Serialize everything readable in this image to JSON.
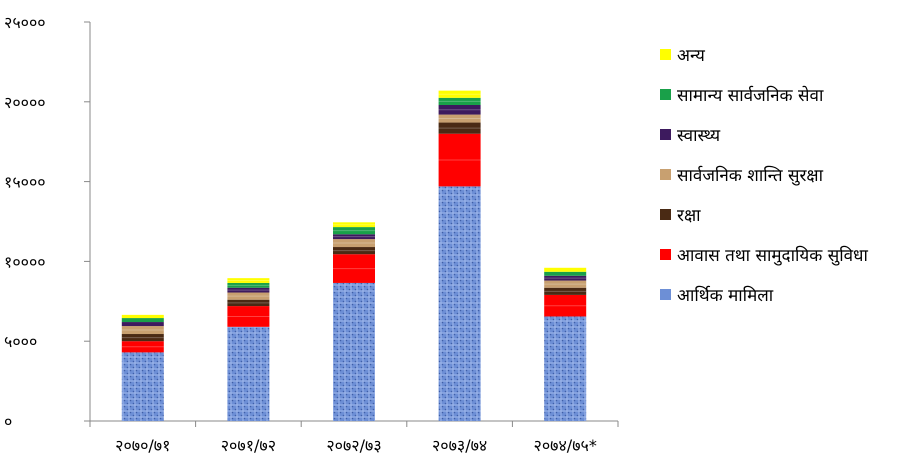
{
  "chart_data": {
    "type": "bar",
    "stacked": true,
    "categories": [
      "२०७०/७१",
      "२०७१/७२",
      "२०७२/७३",
      "२०७३/७४",
      "२०७४/७५*"
    ],
    "ylim": [
      0,
      25000
    ],
    "yticks": [
      {
        "value": 0,
        "label": "०"
      },
      {
        "value": 5000,
        "label": "५०००"
      },
      {
        "value": 10000,
        "label": "१००००"
      },
      {
        "value": 15000,
        "label": "१५०००"
      },
      {
        "value": 20000,
        "label": "२००००"
      },
      {
        "value": 25000,
        "label": "२५०००"
      }
    ],
    "grid": false,
    "legend_position": "right",
    "series": [
      {
        "name": "आर्थिक मामिला",
        "color": "#6d8fd6",
        "values": [
          4300,
          5900,
          8650,
          14700,
          6550
        ]
      },
      {
        "name": "आवास तथा सामुदायिक सुविधा",
        "color": "#ff0000",
        "values": [
          700,
          1300,
          1800,
          3300,
          1350
        ]
      },
      {
        "name": "रक्षा",
        "color": "#4a2a14",
        "values": [
          450,
          400,
          450,
          700,
          450
        ]
      },
      {
        "name": "सार्वजनिक शान्ति सुरक्षा",
        "color": "#c8a070",
        "values": [
          500,
          450,
          500,
          500,
          450
        ]
      },
      {
        "name": "स्वास्थ्य",
        "color": "#3d1a5e",
        "values": [
          250,
          300,
          300,
          600,
          300
        ]
      },
      {
        "name": "सामान्य सार्वजनिक सेवा",
        "color": "#19a049",
        "values": [
          250,
          300,
          450,
          450,
          250
        ]
      },
      {
        "name": "अन्य",
        "color": "#ffff00",
        "values": [
          200,
          300,
          300,
          450,
          250
        ]
      }
    ]
  }
}
